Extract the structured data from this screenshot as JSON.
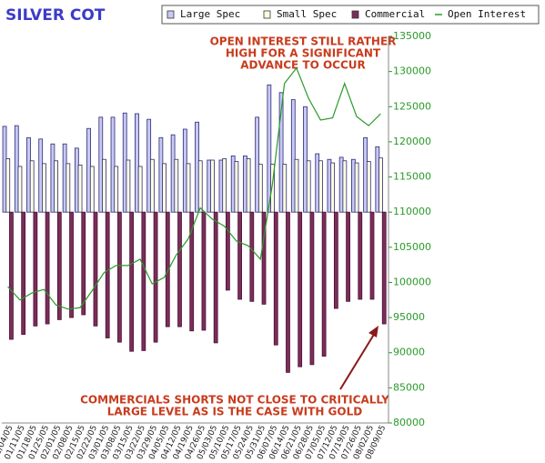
{
  "chart_data": {
    "type": "bar",
    "title": "SILVER COT",
    "annotations": [
      "OPEN INTEREST STILL RATHER",
      "HIGH FOR A SIGNIFICANT",
      "ADVANCE TO OCCUR",
      "COMMERCIALS SHORTS NOT CLOSE TO CRITICALLY",
      "LARGE LEVEL AS IS THE CASE WITH GOLD"
    ],
    "categories": [
      "01/04/05",
      "01/11/05",
      "01/18/05",
      "01/25/05",
      "02/01/05",
      "02/08/05",
      "02/15/05",
      "02/22/05",
      "03/01/05",
      "03/08/05",
      "03/15/05",
      "03/22/05",
      "03/29/05",
      "04/05/05",
      "04/12/05",
      "04/19/05",
      "04/26/05",
      "05/03/05",
      "05/10/05",
      "05/17/05",
      "05/24/05",
      "05/31/05",
      "06/07/05",
      "06/14/05",
      "06/21/05",
      "06/28/05",
      "07/05/05",
      "07/12/05",
      "07/19/05",
      "07/26/05",
      "08/02/05",
      "08/09/05"
    ],
    "ylim": [
      -30000,
      25000
    ],
    "y2lim": [
      80000,
      135000
    ],
    "y2ticks": [
      80000,
      85000,
      90000,
      95000,
      100000,
      105000,
      110000,
      115000,
      120000,
      125000,
      130000,
      135000
    ],
    "legend_position": "top-right",
    "series": [
      {
        "name": "Large Spec",
        "color": "#c8c8f8",
        "values": [
          12200,
          12300,
          10600,
          10400,
          9700,
          9700,
          9100,
          11900,
          13500,
          13500,
          14100,
          14000,
          13200,
          10600,
          11000,
          11800,
          12800,
          7400,
          7400,
          8000,
          8000,
          13500,
          18100,
          17000,
          16000,
          15000,
          8300,
          7500,
          7800,
          7500,
          10600,
          9300
        ]
      },
      {
        "name": "Small Spec",
        "color": "#ffffe0",
        "values": [
          7600,
          6500,
          7300,
          6900,
          7300,
          6900,
          6700,
          6500,
          7500,
          6500,
          7400,
          6500,
          7500,
          6900,
          7500,
          6900,
          7300,
          7400,
          7600,
          7200,
          7600,
          6800,
          6800,
          6800,
          7500,
          7300,
          7300,
          7000,
          7300,
          7000,
          7200,
          7700
        ]
      },
      {
        "name": "Commercial",
        "color": "#7b2d5b",
        "values": [
          -18100,
          -17400,
          -16200,
          -15900,
          -15300,
          -15000,
          -14600,
          -16200,
          -17900,
          -18500,
          -19800,
          -19700,
          -18500,
          -16300,
          -16300,
          -16900,
          -16800,
          -18600,
          -11100,
          -12400,
          -12700,
          -13100,
          -18900,
          -22800,
          -22000,
          -21700,
          -20500,
          -13700,
          -12700,
          -12400,
          -12400,
          -15900
        ]
      },
      {
        "name": "Open Interest",
        "color": "#2a9a2a",
        "axis": "y2",
        "values": [
          99400,
          97500,
          98500,
          99000,
          96800,
          96200,
          96400,
          98800,
          101400,
          102400,
          102400,
          103300,
          99800,
          100700,
          103900,
          106200,
          110600,
          109000,
          108000,
          105900,
          105200,
          103300,
          114000,
          128300,
          130500,
          126200,
          123100,
          123400,
          128300,
          123600,
          122300,
          124000
        ]
      }
    ]
  }
}
